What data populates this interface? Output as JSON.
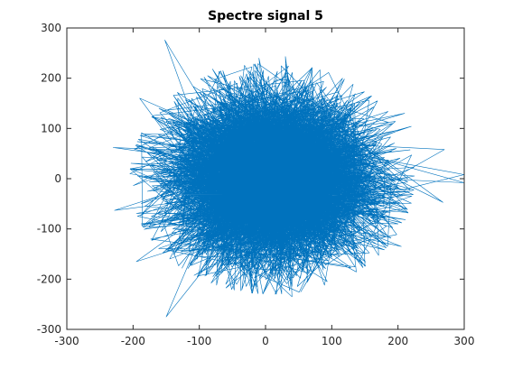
{
  "chart_data": {
    "type": "line",
    "title": "Spectre signal 5",
    "xlabel": "",
    "ylabel": "",
    "xlim": [
      -300,
      300
    ],
    "ylim": [
      -300,
      300
    ],
    "xticks": [
      -300,
      -200,
      -100,
      0,
      100,
      200,
      300
    ],
    "yticks": [
      -300,
      -200,
      -100,
      0,
      100,
      200,
      300
    ],
    "xtick_labels": [
      "-300",
      "-200",
      "-100",
      "0",
      "100",
      "200",
      "300"
    ],
    "ytick_labels": [
      "-300",
      "-200",
      "-100",
      "0",
      "100",
      "200",
      "300"
    ],
    "grid": false,
    "line_color": "#0072BD",
    "axis_color": "#262626",
    "series": [
      {
        "style": "dense random-walk trace filling an elliptical cloud centered near (0, 0)",
        "approx_extent": {
          "x": [
            -230,
            300
          ],
          "y": [
            -275,
            278
          ]
        },
        "outlier_points": [
          [
            -152,
            276
          ],
          [
            -150,
            -275
          ],
          [
            -230,
            62
          ],
          [
            -228,
            -63
          ],
          [
            -195,
            -165
          ],
          [
            -190,
            160
          ],
          [
            220,
            104
          ],
          [
            270,
            58
          ],
          [
            300,
            8
          ],
          [
            300,
            -8
          ],
          [
            268,
            -47
          ],
          [
            205,
            -135
          ],
          [
            210,
            130
          ],
          [
            30,
            243
          ],
          [
            -10,
            240
          ],
          [
            40,
            -235
          ],
          [
            -60,
            -210
          ],
          [
            -80,
            218
          ],
          [
            200,
            -90
          ],
          [
            215,
            0
          ]
        ],
        "core_spread_std": {
          "x": 75,
          "y": 82
        }
      }
    ]
  }
}
